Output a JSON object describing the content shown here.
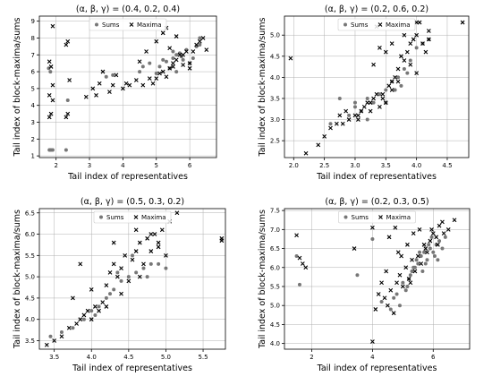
{
  "chart_data": [
    {
      "type": "scatter",
      "title": "(α, β, γ) = (0.4, 0.2, 0.4)",
      "xlabel": "Tail index of representatives",
      "ylabel": "Tail index of block-maxima/sums",
      "xlim": [
        1.5,
        6.8
      ],
      "ylim": [
        0.9,
        9.3
      ],
      "xticks": [
        "2",
        "3",
        "4",
        "5",
        "6"
      ],
      "xtick_values": [
        2,
        3,
        4,
        5,
        6
      ],
      "yticks": [
        "1",
        "2",
        "3",
        "4",
        "5",
        "6",
        "7",
        "8",
        "9"
      ],
      "ytick_values": [
        1,
        2,
        3,
        4,
        5,
        6,
        7,
        8,
        9
      ],
      "grid": true,
      "legend": "top-center",
      "series": [
        {
          "name": "Sums",
          "marker": "circle",
          "color": "#777777",
          "x": [
            1.8,
            1.85,
            1.82,
            1.9,
            2.3,
            2.35,
            3.5,
            3.7,
            4.5,
            4.6,
            4.8,
            5.0,
            5.1,
            5.2,
            5.3,
            5.4,
            5.5,
            5.6,
            5.7,
            5.8,
            5.9,
            6.0,
            6.1,
            6.2,
            6.3,
            5.5,
            5.6,
            5.75,
            6.3,
            1.83,
            1.78
          ],
          "y": [
            1.35,
            1.35,
            1.35,
            1.35,
            1.35,
            4.3,
            5.7,
            5.8,
            6.0,
            6.3,
            6.5,
            5.9,
            6.3,
            6.7,
            6.6,
            6.2,
            6.8,
            7.0,
            7.1,
            6.7,
            7.3,
            6.5,
            6.8,
            7.5,
            7.6,
            7.2,
            6.0,
            6.9,
            8.0,
            6.0,
            6.2
          ]
        },
        {
          "name": "Maxima",
          "marker": "x",
          "color": "#000000",
          "x": [
            1.8,
            1.85,
            1.9,
            1.8,
            1.9,
            1.85,
            1.8,
            1.9,
            2.3,
            2.35,
            2.4,
            2.3,
            2.35,
            2.9,
            3.1,
            3.3,
            3.4,
            3.6,
            3.7,
            3.8,
            4.0,
            4.2,
            4.4,
            4.6,
            4.8,
            5.0,
            5.1,
            5.2,
            5.3,
            5.4,
            5.5,
            5.6,
            5.7,
            5.8,
            5.9,
            6.0,
            6.1,
            6.2,
            6.3,
            6.5,
            5.0,
            5.2,
            5.4,
            5.6,
            5.8,
            6.0,
            4.5,
            4.7,
            4.9,
            5.5,
            6.4,
            3.2,
            4.1,
            5.3
          ],
          "y": [
            3.3,
            3.5,
            4.3,
            4.6,
            5.2,
            6.3,
            6.6,
            8.7,
            3.3,
            3.5,
            5.5,
            7.6,
            7.8,
            4.5,
            5.0,
            5.3,
            6.0,
            4.8,
            5.2,
            5.8,
            5.0,
            5.2,
            5.5,
            5.2,
            5.6,
            5.6,
            5.9,
            6.0,
            5.7,
            6.2,
            6.3,
            6.7,
            7.0,
            6.4,
            7.2,
            6.5,
            7.2,
            7.6,
            7.8,
            7.3,
            7.8,
            8.3,
            7.4,
            8.1,
            7.0,
            6.2,
            6.6,
            7.2,
            5.3,
            6.5,
            8.0,
            4.6,
            5.3,
            8.6
          ]
        }
      ]
    },
    {
      "type": "scatter",
      "title": "(α, β, γ) = (0.2, 0.6, 0.2)",
      "xlabel": "Tail index of representatives",
      "ylabel": "Tail index of block-maxima/sums",
      "xlim": [
        1.85,
        4.85
      ],
      "ylim": [
        2.1,
        5.45
      ],
      "xticks": [
        "2.0",
        "2.5",
        "3.0",
        "3.5",
        "4.0",
        "4.5"
      ],
      "xtick_values": [
        2.0,
        2.5,
        3.0,
        3.5,
        4.0,
        4.5
      ],
      "yticks": [
        "2.5",
        "3.0",
        "3.5",
        "4.0",
        "4.5",
        "5.0"
      ],
      "ytick_values": [
        2.5,
        3.0,
        3.5,
        4.0,
        4.5,
        5.0
      ],
      "grid": true,
      "legend": "top-center",
      "series": [
        {
          "name": "Sums",
          "marker": "circle",
          "color": "#777777",
          "x": [
            2.6,
            2.75,
            2.9,
            3.0,
            3.1,
            3.2,
            3.3,
            3.4,
            3.5,
            3.6,
            3.7,
            3.75,
            3.8,
            3.9,
            4.0,
            4.1,
            4.2,
            3.5,
            3.65,
            3.85,
            3.2,
            3.0
          ],
          "y": [
            2.9,
            3.5,
            3.1,
            3.3,
            3.2,
            3.5,
            3.4,
            3.6,
            3.7,
            3.9,
            4.0,
            3.8,
            4.2,
            4.4,
            4.7,
            4.8,
            4.9,
            3.4,
            3.7,
            4.1,
            3.0,
            3.4
          ]
        },
        {
          "name": "Maxima",
          "marker": "x",
          "color": "#000000",
          "x": [
            1.95,
            2.2,
            2.4,
            2.5,
            2.6,
            2.7,
            2.8,
            2.9,
            3.0,
            3.05,
            3.1,
            3.15,
            3.2,
            3.25,
            3.3,
            3.35,
            3.4,
            3.45,
            3.5,
            3.55,
            3.6,
            3.65,
            3.7,
            3.75,
            3.8,
            3.85,
            3.9,
            3.95,
            4.0,
            4.05,
            4.1,
            4.15,
            4.2,
            4.75,
            3.3,
            3.5,
            3.6,
            3.8,
            4.0,
            4.2,
            2.75,
            2.85,
            3.05,
            3.25,
            3.45,
            3.7,
            3.9,
            3.4,
            3.6,
            4.0,
            3.35
          ],
          "y": [
            4.45,
            2.2,
            2.4,
            2.6,
            2.8,
            2.9,
            2.9,
            3.0,
            3.1,
            3.1,
            3.2,
            3.3,
            3.4,
            3.2,
            3.5,
            3.6,
            3.3,
            3.5,
            3.4,
            3.8,
            3.7,
            4.0,
            4.2,
            4.5,
            4.4,
            4.6,
            4.8,
            4.9,
            5.0,
            5.3,
            4.8,
            4.6,
            4.9,
            5.3,
            4.3,
            4.6,
            4.8,
            5.0,
            5.3,
            5.1,
            3.1,
            3.2,
            3.0,
            3.4,
            3.6,
            3.9,
            4.3,
            4.7,
            3.9,
            4.1,
            5.2
          ]
        }
      ]
    },
    {
      "type": "scatter",
      "title": "(α, β, γ) = (0.5, 0.3, 0.2)",
      "xlabel": "Tail index of representatives",
      "ylabel": "Tail index of block-maxima/sums",
      "xlim": [
        3.3,
        5.8
      ],
      "ylim": [
        3.3,
        6.6
      ],
      "xticks": [
        "3.5",
        "4.0",
        "4.5",
        "5.0",
        "5.5"
      ],
      "xtick_values": [
        3.5,
        4.0,
        4.5,
        5.0,
        5.5
      ],
      "yticks": [
        "3.5",
        "4.0",
        "4.5",
        "5.0",
        "5.5",
        "6.0",
        "6.5"
      ],
      "ytick_values": [
        3.5,
        4.0,
        4.5,
        5.0,
        5.5,
        6.0,
        6.5
      ],
      "grid": true,
      "legend": "top-center",
      "series": [
        {
          "name": "Sums",
          "marker": "circle",
          "color": "#777777",
          "x": [
            3.45,
            3.6,
            3.75,
            3.9,
            4.0,
            4.1,
            4.2,
            4.3,
            4.4,
            4.5,
            4.6,
            4.7,
            4.8,
            4.9,
            5.0,
            4.35,
            4.55,
            4.75,
            4.25,
            4.05
          ],
          "y": [
            3.6,
            3.7,
            3.8,
            4.0,
            4.2,
            4.3,
            4.5,
            4.7,
            4.9,
            5.0,
            5.1,
            5.2,
            5.3,
            5.3,
            5.2,
            5.1,
            5.5,
            5.0,
            4.6,
            4.1
          ]
        },
        {
          "name": "Maxima",
          "marker": "x",
          "color": "#000000",
          "x": [
            3.4,
            3.5,
            3.6,
            3.7,
            3.8,
            3.85,
            3.9,
            3.95,
            4.0,
            4.05,
            4.1,
            4.15,
            4.2,
            4.25,
            4.3,
            4.35,
            4.4,
            4.45,
            4.5,
            4.55,
            4.6,
            4.65,
            4.7,
            4.75,
            4.8,
            4.85,
            4.9,
            4.95,
            5.0,
            5.05,
            5.15,
            5.75,
            5.75,
            3.85,
            4.3,
            4.6,
            4.8,
            4.9,
            3.75,
            4.0,
            4.2,
            4.4,
            4.65
          ],
          "y": [
            3.4,
            3.5,
            3.6,
            3.8,
            3.9,
            4.0,
            4.1,
            4.2,
            4.0,
            4.3,
            4.2,
            4.4,
            4.8,
            5.1,
            5.3,
            5.0,
            5.2,
            5.5,
            4.9,
            5.4,
            5.6,
            5.8,
            5.3,
            5.9,
            5.6,
            6.0,
            5.7,
            6.1,
            5.5,
            6.3,
            6.5,
            5.9,
            5.85,
            5.3,
            5.8,
            6.1,
            6.0,
            5.8,
            4.5,
            4.7,
            4.3,
            4.6,
            5.0
          ]
        }
      ]
    },
    {
      "type": "scatter",
      "title": "(α, β, γ) = (0.2, 0.3, 0.5)",
      "xlabel": "Tail index of representatives",
      "ylabel": "Tail index of block-maxima/sums",
      "xlim": [
        1.1,
        7.2
      ],
      "ylim": [
        3.85,
        7.55
      ],
      "xticks": [
        "2",
        "4",
        "6"
      ],
      "xtick_values": [
        2,
        4,
        6
      ],
      "yticks": [
        "4.0",
        "4.5",
        "5.0",
        "5.5",
        "6.0",
        "6.5",
        "7.0",
        "7.5"
      ],
      "ytick_values": [
        4.0,
        4.5,
        5.0,
        5.5,
        6.0,
        6.5,
        7.0,
        7.5
      ],
      "grid": true,
      "legend": "top-center",
      "series": [
        {
          "name": "Sums",
          "marker": "circle",
          "color": "#777777",
          "x": [
            1.5,
            1.6,
            3.5,
            4.0,
            4.3,
            4.6,
            4.8,
            5.0,
            5.1,
            5.2,
            5.3,
            5.4,
            5.5,
            5.6,
            5.7,
            5.8,
            5.9,
            6.0,
            6.1,
            6.2,
            6.3,
            6.4,
            5.25,
            5.45,
            5.65,
            5.85,
            6.05,
            4.9,
            5.15,
            5.35,
            5.55,
            5.75,
            5.95,
            6.15,
            4.7
          ],
          "y": [
            6.3,
            5.55,
            5.8,
            6.75,
            5.1,
            4.9,
            5.3,
            5.6,
            5.4,
            5.7,
            5.9,
            6.0,
            6.1,
            6.3,
            6.4,
            6.2,
            6.5,
            6.4,
            6.6,
            6.7,
            6.5,
            6.8,
            5.8,
            6.2,
            5.9,
            6.6,
            6.3,
            5.0,
            5.5,
            6.0,
            6.4,
            6.1,
            6.8,
            6.2,
            5.2
          ]
        },
        {
          "name": "Maxima",
          "marker": "x",
          "color": "#000000",
          "x": [
            1.5,
            1.6,
            1.7,
            1.8,
            3.4,
            4.0,
            4.1,
            4.2,
            4.3,
            4.4,
            4.5,
            4.6,
            4.7,
            4.8,
            4.9,
            5.0,
            5.1,
            5.2,
            5.3,
            5.4,
            5.5,
            5.6,
            5.7,
            5.8,
            5.9,
            6.0,
            6.1,
            6.2,
            6.3,
            6.5,
            6.7,
            4.55,
            4.75,
            4.95,
            5.15,
            5.35,
            5.55,
            5.75,
            5.95,
            6.15,
            6.35,
            4.0,
            4.45,
            4.85,
            5.25
          ],
          "y": [
            6.85,
            6.25,
            6.1,
            6.0,
            6.5,
            4.05,
            4.9,
            5.3,
            5.6,
            5.2,
            5.0,
            5.4,
            4.8,
            5.6,
            5.8,
            5.5,
            6.0,
            5.7,
            6.2,
            5.9,
            6.3,
            6.1,
            6.6,
            6.4,
            6.7,
            6.9,
            6.8,
            7.1,
            7.2,
            7.0,
            7.25,
            6.8,
            7.05,
            6.3,
            6.6,
            6.9,
            7.0,
            6.5,
            7.0,
            6.6,
            6.9,
            7.05,
            5.9,
            6.4,
            5.6
          ]
        }
      ]
    }
  ]
}
